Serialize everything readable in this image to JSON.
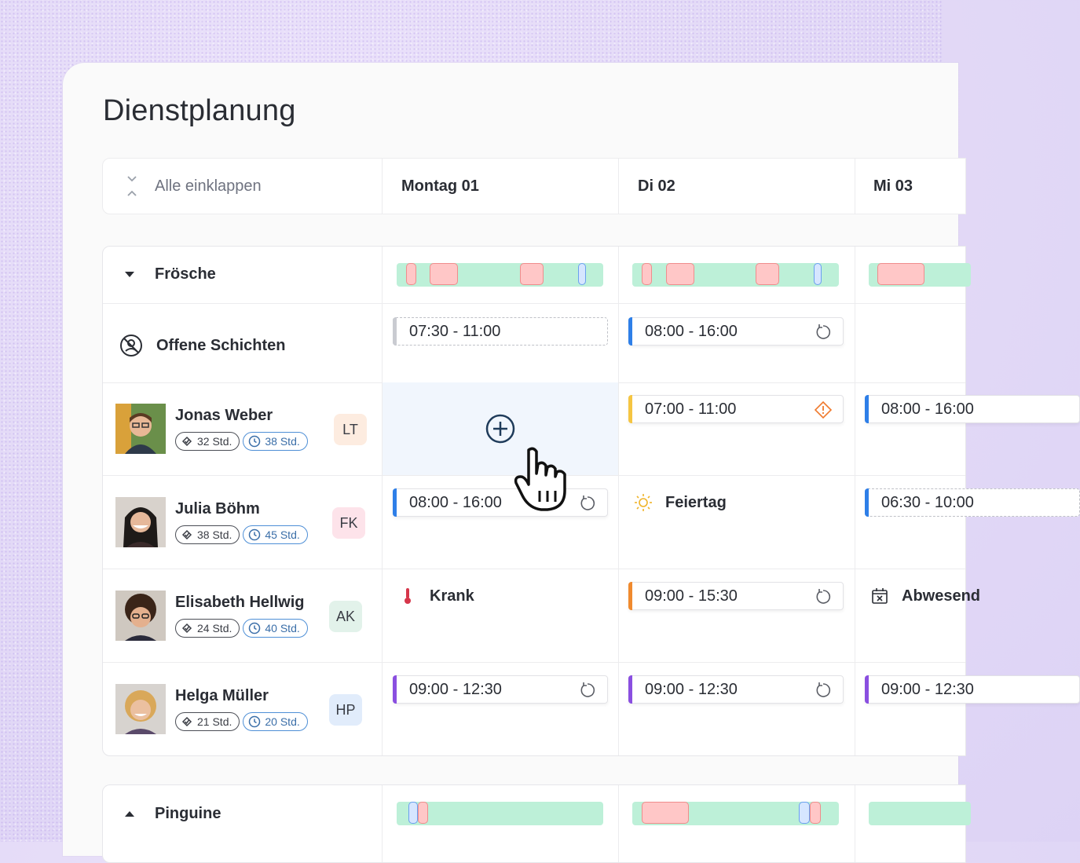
{
  "page": {
    "title": "Dienstplanung"
  },
  "header": {
    "collapse_label": "Alle einklappen",
    "days": [
      "Montag 01",
      "Di 02",
      "Mi 03"
    ]
  },
  "groups": [
    {
      "name": "Frösche",
      "expanded": true,
      "open_shifts_label": "Offene Schichten",
      "open_shifts": [
        {
          "day": "Montag 01",
          "time": "07:30 - 11:00",
          "style": "dashed",
          "accent": "#c9cbd1"
        },
        {
          "day": "Di 02",
          "time": "08:00 - 16:00",
          "accent": "#2e7fe8",
          "icon": "repeat-icon"
        }
      ],
      "people": [
        {
          "name": "Jonas Weber",
          "initials": "LT",
          "initials_bg": "#fdece0",
          "done": "32 Std.",
          "planned": "38 Std.",
          "shifts": [
            {
              "day": "Di 02",
              "time": "07:00 - 11:00",
              "accent": "#f5c542",
              "icon": "warning-icon"
            },
            {
              "day": "Mi 03",
              "time": "08:00 - 16:00",
              "accent": "#2e7fe8"
            }
          ]
        },
        {
          "name": "Julia Böhm",
          "initials": "FK",
          "initials_bg": "#fde3ea",
          "done": "38 Std.",
          "planned": "45 Std.",
          "shifts": [
            {
              "day": "Montag 01",
              "time": "08:00 - 16:00",
              "accent": "#2e7fe8",
              "icon": "repeat-icon"
            },
            {
              "day": "Mi 03",
              "time": "06:30 - 10:00",
              "accent": "#2e7fe8",
              "style": "dashed"
            }
          ],
          "status": {
            "day": "Di 02",
            "label": "Feiertag",
            "icon": "sun-icon"
          }
        },
        {
          "name": "Elisabeth Hellwig",
          "initials": "AK",
          "initials_bg": "#e2f2ea",
          "done": "24 Std.",
          "planned": "40 Std.",
          "shifts": [
            {
              "day": "Di 02",
              "time": "09:00 - 15:30",
              "accent": "#f08a2e",
              "icon": "repeat-icon"
            }
          ],
          "status": {
            "day": "Montag 01",
            "label": "Krank",
            "icon": "thermometer-icon"
          },
          "status2": {
            "day": "Mi 03",
            "label": "Abwesend",
            "icon": "calendar-x-icon"
          }
        },
        {
          "name": "Helga Müller",
          "initials": "HP",
          "initials_bg": "#e1ecfb",
          "done": "21 Std.",
          "planned": "20 Std.",
          "shifts": [
            {
              "day": "Montag 01",
              "time": "09:00 - 12:30",
              "accent": "#8a4fe0",
              "icon": "repeat-icon"
            },
            {
              "day": "Di 02",
              "time": "09:00 - 12:30",
              "accent": "#8a4fe0",
              "icon": "repeat-icon"
            },
            {
              "day": "Mi 03",
              "time": "09:00 - 12:30",
              "accent": "#8a4fe0"
            }
          ]
        }
      ]
    },
    {
      "name": "Pinguine",
      "expanded": false
    }
  ],
  "colors": {
    "timeline_bg": "#bdf0d8",
    "timeline_busy": "#ffc7c7",
    "timeline_marker": "#d6e6ff",
    "add_cell_bg": "#f1f6fd"
  }
}
